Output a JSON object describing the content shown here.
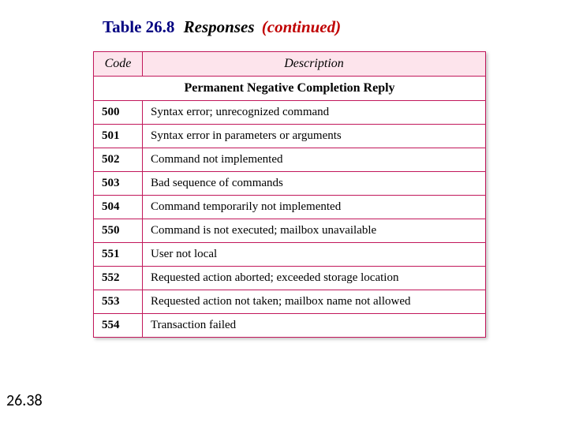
{
  "title": {
    "prefix": "Table 26.8",
    "mid": "Responses",
    "suffix": "(continued)"
  },
  "table": {
    "border_color": "#c2185b",
    "header_bg": "#fde4ec",
    "col_code": "Code",
    "col_desc": "Description",
    "section_label": "Permanent Negative Completion Reply",
    "rows": [
      {
        "code": "500",
        "desc": "Syntax error; unrecognized command"
      },
      {
        "code": "501",
        "desc": "Syntax error in parameters or arguments"
      },
      {
        "code": "502",
        "desc": "Command not implemented"
      },
      {
        "code": "503",
        "desc": "Bad sequence of commands"
      },
      {
        "code": "504",
        "desc": "Command temporarily not implemented"
      },
      {
        "code": "550",
        "desc": "Command is not executed; mailbox unavailable"
      },
      {
        "code": "551",
        "desc": "User not local"
      },
      {
        "code": "552",
        "desc": "Requested action aborted; exceeded storage location"
      },
      {
        "code": "553",
        "desc": "Requested action not taken; mailbox name not allowed"
      },
      {
        "code": "554",
        "desc": "Transaction failed"
      }
    ]
  },
  "page_number": "26.38"
}
